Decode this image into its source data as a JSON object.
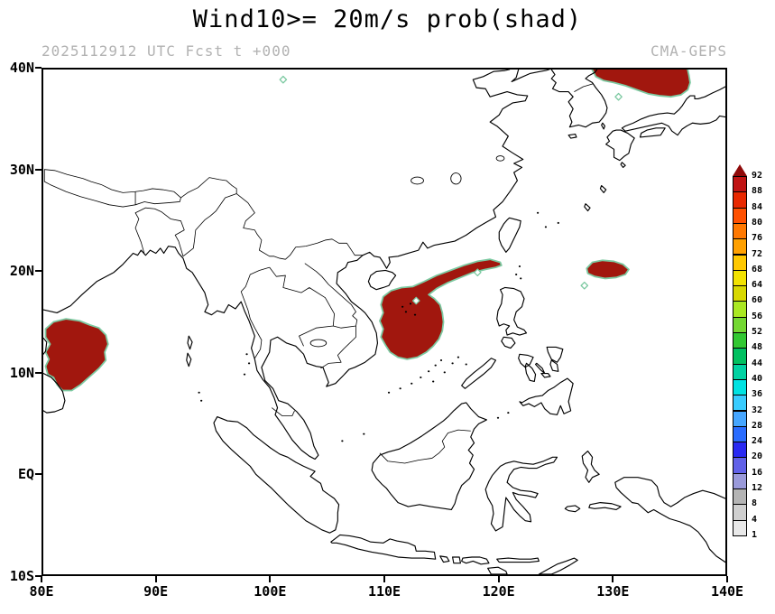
{
  "title": "Wind10>= 20m/s prob(shad)",
  "subtitle_left": "2025112912 UTC Fcst t +000",
  "subtitle_right": "CMA-GEPS",
  "axes": {
    "lon_range": [
      80,
      140
    ],
    "lat_range": [
      -10,
      40
    ],
    "lat_ticks": [
      {
        "lat": 40,
        "label": "40N"
      },
      {
        "lat": 30,
        "label": "30N"
      },
      {
        "lat": 20,
        "label": "20N"
      },
      {
        "lat": 10,
        "label": "10N"
      },
      {
        "lat": 0,
        "label": "EQ"
      },
      {
        "lat": -10,
        "label": "10S"
      }
    ],
    "lon_ticks": [
      {
        "lon": 80,
        "label": "80E"
      },
      {
        "lon": 90,
        "label": "90E"
      },
      {
        "lon": 100,
        "label": "100E"
      },
      {
        "lon": 110,
        "label": "110E"
      },
      {
        "lon": 120,
        "label": "120E"
      },
      {
        "lon": 130,
        "label": "130E"
      },
      {
        "lon": 140,
        "label": "140E"
      }
    ]
  },
  "colorbar": {
    "levels": [
      1,
      4,
      8,
      12,
      16,
      20,
      24,
      28,
      32,
      36,
      40,
      44,
      48,
      52,
      56,
      60,
      64,
      68,
      72,
      76,
      80,
      84,
      88,
      92
    ],
    "colors": [
      "#e9e9e9",
      "#cfcfcf",
      "#b4b4b4",
      "#9a9ada",
      "#6161e8",
      "#2a2af2",
      "#2a6cff",
      "#46a6ff",
      "#38ccff",
      "#00e2e2",
      "#00d2a2",
      "#00c060",
      "#32c832",
      "#74d832",
      "#aae822",
      "#d8d800",
      "#f2e200",
      "#ffc800",
      "#ffa000",
      "#ff7800",
      "#ff5000",
      "#e82800",
      "#c01414"
    ],
    "triangle_color": "#8f0a0a"
  },
  "map": {
    "shade_fill": "#a1170e",
    "shade_outline": "#7cc9a1",
    "island_dots": [
      [
        111.6,
        16.5
      ],
      [
        112.3,
        16.8
      ],
      [
        111.9,
        16.0
      ],
      [
        112.7,
        15.7
      ],
      [
        110.4,
        8.0
      ],
      [
        111.4,
        8.4
      ],
      [
        112.4,
        8.9
      ],
      [
        113.2,
        9.5
      ],
      [
        113.9,
        10.1
      ],
      [
        114.5,
        10.7
      ],
      [
        115.0,
        11.2
      ],
      [
        114.3,
        9.1
      ],
      [
        115.3,
        10.0
      ],
      [
        116.0,
        10.9
      ],
      [
        116.5,
        11.5
      ],
      [
        117.2,
        10.8
      ],
      [
        108.2,
        3.9
      ],
      [
        106.3,
        3.2
      ],
      [
        97.9,
        11.8
      ],
      [
        98.1,
        10.9
      ],
      [
        97.7,
        9.8
      ],
      [
        93.7,
        8.0
      ],
      [
        93.9,
        7.2
      ],
      [
        121.9,
        20.5
      ],
      [
        121.6,
        19.7
      ],
      [
        122.0,
        19.3
      ],
      [
        124.2,
        24.4
      ],
      [
        125.3,
        24.8
      ],
      [
        123.5,
        25.8
      ],
      [
        120.0,
        5.5
      ],
      [
        120.9,
        6.0
      ]
    ]
  },
  "chart_data": {
    "type": "heatmap",
    "title": "Wind10>= 20m/s prob(shad)",
    "model": "CMA-GEPS",
    "valid": "2025112912 UTC Fcst t +000",
    "lon_range": [
      80,
      140
    ],
    "lat_range": [
      -10,
      40
    ],
    "levels": [
      1,
      4,
      8,
      12,
      16,
      20,
      24,
      28,
      32,
      36,
      40,
      44,
      48,
      52,
      56,
      60,
      64,
      68,
      72,
      76,
      80,
      84,
      88,
      92
    ],
    "regions": [
      {
        "name": "bay-of-bengal",
        "value": 92,
        "polygon": [
          [
            80.2,
            14.3
          ],
          [
            80.9,
            15.0
          ],
          [
            82.0,
            15.3
          ],
          [
            83.2,
            15.1
          ],
          [
            84.1,
            14.7
          ],
          [
            84.9,
            14.4
          ],
          [
            85.5,
            13.7
          ],
          [
            85.7,
            12.8
          ],
          [
            85.4,
            12.0
          ],
          [
            85.5,
            11.2
          ],
          [
            84.9,
            10.4
          ],
          [
            84.1,
            9.6
          ],
          [
            83.3,
            8.8
          ],
          [
            82.5,
            8.2
          ],
          [
            81.7,
            8.2
          ],
          [
            81.2,
            8.8
          ],
          [
            80.9,
            9.5
          ],
          [
            80.4,
            9.8
          ],
          [
            80.2,
            10.6
          ],
          [
            80.5,
            11.3
          ],
          [
            80.2,
            12.0
          ],
          [
            80.6,
            12.8
          ],
          [
            80.2,
            13.5
          ]
        ]
      },
      {
        "name": "south-china-sea",
        "value": 92,
        "polygon": [
          [
            120.2,
            20.9
          ],
          [
            119.3,
            21.2
          ],
          [
            118.2,
            21.0
          ],
          [
            117.0,
            20.6
          ],
          [
            115.8,
            20.1
          ],
          [
            114.6,
            19.6
          ],
          [
            113.5,
            19.0
          ],
          [
            112.5,
            18.5
          ],
          [
            111.5,
            18.4
          ],
          [
            110.6,
            18.1
          ],
          [
            109.9,
            17.5
          ],
          [
            109.7,
            16.7
          ],
          [
            109.9,
            15.9
          ],
          [
            109.6,
            15.1
          ],
          [
            109.9,
            14.3
          ],
          [
            109.7,
            13.5
          ],
          [
            110.1,
            12.7
          ],
          [
            110.5,
            12.0
          ],
          [
            111.2,
            11.5
          ],
          [
            112.0,
            11.3
          ],
          [
            112.9,
            11.5
          ],
          [
            113.7,
            12.0
          ],
          [
            114.3,
            12.6
          ],
          [
            114.8,
            13.3
          ],
          [
            115.1,
            14.1
          ],
          [
            115.2,
            15.0
          ],
          [
            115.1,
            15.9
          ],
          [
            114.9,
            16.7
          ],
          [
            114.4,
            17.3
          ],
          [
            113.9,
            17.7
          ],
          [
            114.6,
            18.3
          ],
          [
            115.6,
            18.9
          ],
          [
            116.7,
            19.4
          ],
          [
            117.8,
            19.9
          ],
          [
            118.9,
            20.2
          ],
          [
            119.8,
            20.4
          ],
          [
            120.3,
            20.6
          ]
        ]
      },
      {
        "name": "philippine-sea",
        "value": 92,
        "polygon": [
          [
            127.8,
            20.3
          ],
          [
            128.3,
            20.9
          ],
          [
            129.2,
            21.1
          ],
          [
            130.2,
            21.0
          ],
          [
            131.0,
            20.7
          ],
          [
            131.5,
            20.2
          ],
          [
            131.2,
            19.7
          ],
          [
            130.4,
            19.4
          ],
          [
            129.4,
            19.3
          ],
          [
            128.5,
            19.5
          ],
          [
            127.9,
            19.8
          ]
        ]
      },
      {
        "name": "sea-of-japan",
        "value": 92,
        "polygon": [
          [
            128.1,
            40.4
          ],
          [
            128.6,
            39.3
          ],
          [
            129.3,
            38.9
          ],
          [
            130.2,
            38.7
          ],
          [
            131.2,
            38.4
          ],
          [
            132.2,
            38.0
          ],
          [
            133.2,
            37.6
          ],
          [
            134.2,
            37.4
          ],
          [
            135.2,
            37.3
          ],
          [
            136.1,
            37.5
          ],
          [
            136.7,
            38.0
          ],
          [
            136.9,
            38.7
          ],
          [
            136.8,
            39.4
          ],
          [
            136.6,
            40.4
          ]
        ]
      }
    ],
    "markers": [
      {
        "lon": 101.1,
        "lat": 39.0
      },
      {
        "lon": 118.2,
        "lat": 19.9
      },
      {
        "lon": 112.8,
        "lat": 17.1
      },
      {
        "lon": 127.6,
        "lat": 18.6
      },
      {
        "lon": 130.6,
        "lat": 37.3
      }
    ]
  }
}
